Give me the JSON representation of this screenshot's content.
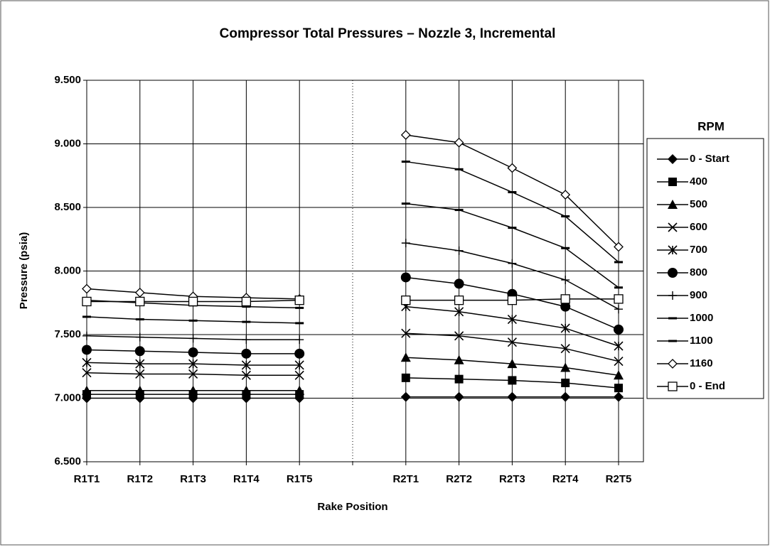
{
  "chart_data": {
    "type": "line",
    "title": "Compressor Total Pressures – Nozzle 3, Incremental",
    "x_label": "Rake Position",
    "y_label": "Pressure (psia)",
    "legend_title": "RPM",
    "legend_position": "right",
    "grid": true,
    "categories": [
      "R1T1",
      "R1T2",
      "R1T3",
      "R1T4",
      "R1T5",
      null,
      "R2T1",
      "R2T2",
      "R2T3",
      "R2T4",
      "R2T5"
    ],
    "ylim": [
      6.5,
      9.5
    ],
    "yticks": [
      {
        "value": 6.5,
        "label": "6.500"
      },
      {
        "value": 7,
        "label": "7.000"
      },
      {
        "value": 7.5,
        "label": "7.500"
      },
      {
        "value": 8,
        "label": "8.000"
      },
      {
        "value": 8.5,
        "label": "8.500"
      },
      {
        "value": 9,
        "label": "9.000"
      },
      {
        "value": 9.5,
        "label": "9.500"
      }
    ],
    "series": [
      {
        "name": "0 - Start",
        "color": "#000000",
        "marker": "diamond",
        "values": [
          7.0,
          7.0,
          7.0,
          7.0,
          7.0,
          null,
          7.01,
          7.01,
          7.01,
          7.01,
          7.01
        ]
      },
      {
        "name": "400",
        "color": "#000000",
        "marker": "square",
        "values": [
          7.03,
          7.03,
          7.03,
          7.03,
          7.03,
          null,
          7.16,
          7.15,
          7.14,
          7.12,
          7.08
        ]
      },
      {
        "name": "500",
        "color": "#000000",
        "marker": "triangle",
        "values": [
          7.06,
          7.06,
          7.06,
          7.06,
          7.06,
          null,
          7.32,
          7.3,
          7.27,
          7.24,
          7.18
        ]
      },
      {
        "name": "600",
        "color": "#000000",
        "marker": "x",
        "values": [
          7.2,
          7.19,
          7.19,
          7.18,
          7.18,
          null,
          7.51,
          7.49,
          7.44,
          7.39,
          7.29
        ]
      },
      {
        "name": "700",
        "color": "#000000",
        "marker": "star",
        "values": [
          7.28,
          7.27,
          7.27,
          7.26,
          7.26,
          null,
          7.72,
          7.68,
          7.62,
          7.55,
          7.41
        ]
      },
      {
        "name": "800",
        "color": "#000000",
        "marker": "circle",
        "values": [
          7.38,
          7.37,
          7.36,
          7.35,
          7.35,
          null,
          7.95,
          7.9,
          7.82,
          7.72,
          7.54
        ]
      },
      {
        "name": "900",
        "color": "#000000",
        "marker": "plus",
        "values": [
          7.49,
          7.48,
          7.47,
          7.46,
          7.46,
          null,
          8.22,
          8.16,
          8.06,
          7.93,
          7.7
        ]
      },
      {
        "name": "1000",
        "color": "#000000",
        "marker": "dash",
        "values": [
          7.64,
          7.62,
          7.61,
          7.6,
          7.59,
          null,
          8.53,
          8.48,
          8.34,
          8.18,
          7.87
        ]
      },
      {
        "name": "1100",
        "color": "#000000",
        "marker": "dash",
        "values": [
          7.77,
          7.75,
          7.73,
          7.72,
          7.71,
          null,
          8.86,
          8.8,
          8.62,
          8.43,
          8.07
        ]
      },
      {
        "name": "1160",
        "color": "#000000",
        "marker": "diamond-open",
        "values": [
          7.86,
          7.83,
          7.8,
          7.79,
          7.78,
          null,
          9.07,
          9.01,
          8.81,
          8.6,
          8.19
        ]
      },
      {
        "name": "0 - End",
        "color": "#000000",
        "marker": "square-open",
        "values": [
          7.76,
          7.76,
          7.76,
          7.76,
          7.77,
          null,
          7.77,
          7.77,
          7.77,
          7.78,
          7.78
        ]
      }
    ]
  }
}
